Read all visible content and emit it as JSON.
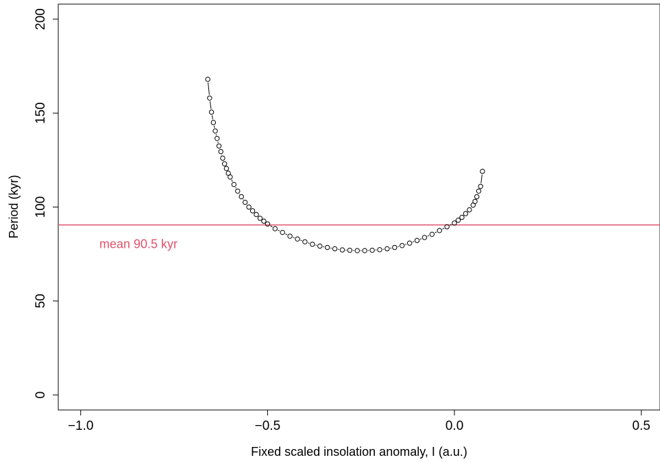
{
  "chart_data": {
    "type": "line",
    "title": "",
    "xlabel": "Fixed scaled insolation anomaly, I (a.u.)",
    "ylabel": "Period (kyr)",
    "xlim": [
      -1.06,
      0.55
    ],
    "ylim": [
      -8,
      208
    ],
    "x_ticks": [
      -1.0,
      -0.5,
      0.0,
      0.5
    ],
    "x_tick_labels": [
      "−1.0",
      "−0.5",
      "0.0",
      "0.5"
    ],
    "y_ticks": [
      0,
      50,
      100,
      150,
      200
    ],
    "y_tick_labels": [
      "0",
      "50",
      "100",
      "150",
      "200"
    ],
    "grid": false,
    "marker": "open-circle",
    "line_style": "b",
    "series": [
      {
        "x": [
          -0.66,
          -0.655,
          -0.65,
          -0.645,
          -0.64,
          -0.635,
          -0.63,
          -0.625,
          -0.62,
          -0.615,
          -0.61,
          -0.605,
          -0.6,
          -0.59,
          -0.58,
          -0.57,
          -0.56,
          -0.55,
          -0.54,
          -0.53,
          -0.52,
          -0.51,
          -0.5,
          -0.48,
          -0.46,
          -0.44,
          -0.42,
          -0.4,
          -0.38,
          -0.36,
          -0.34,
          -0.32,
          -0.3,
          -0.28,
          -0.26,
          -0.24,
          -0.22,
          -0.2,
          -0.18,
          -0.16,
          -0.14,
          -0.12,
          -0.1,
          -0.08,
          -0.06,
          -0.04,
          -0.02,
          0.0,
          0.01,
          0.02,
          0.03,
          0.04,
          0.05,
          0.055,
          0.06,
          0.065,
          0.07,
          0.075
        ],
        "y": [
          168,
          158,
          150.5,
          145,
          140.5,
          136.5,
          132.5,
          129.5,
          126,
          123,
          120.5,
          118,
          116,
          112,
          108.5,
          105.5,
          102.5,
          100,
          98,
          96,
          94,
          92.5,
          91,
          88.5,
          86.5,
          84.5,
          83,
          81.5,
          80.2,
          79.2,
          78.5,
          77.8,
          77.2,
          77,
          76.8,
          76.8,
          77,
          77.3,
          77.8,
          78.5,
          79.5,
          80.8,
          82.2,
          83.8,
          85.5,
          87.5,
          89.5,
          91.5,
          93,
          94.5,
          96.5,
          98.5,
          101,
          103,
          105.5,
          108.5,
          111,
          119
        ]
      }
    ],
    "hlines": [
      {
        "y": 90.5,
        "color": "#df536b",
        "label": "mean 90.5 kyr",
        "label_x": -0.95
      }
    ],
    "colors": {
      "points": "#000000",
      "mean_line": "#df536b"
    }
  }
}
